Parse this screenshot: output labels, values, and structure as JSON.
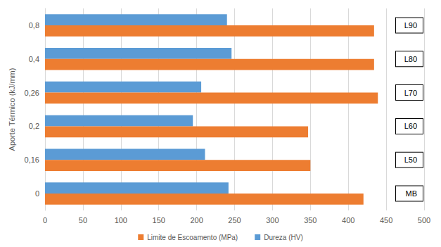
{
  "chart_data": {
    "type": "bar",
    "orientation": "horizontal",
    "y_label": "Aporte Térmico (kJ/mm)",
    "categories": [
      "0",
      "0,16",
      "0,2",
      "0,26",
      "0,4",
      "0,8"
    ],
    "annotations": [
      "MB",
      "L50",
      "L60",
      "L70",
      "L80",
      "L90"
    ],
    "series": [
      {
        "name": "Limite de Escoamento (MPa)",
        "color": "#ed7d31",
        "values": [
          420,
          350,
          347,
          439,
          434,
          434
        ]
      },
      {
        "name": "Dureza (HV)",
        "color": "#5b9bd5",
        "values": [
          242,
          211,
          195,
          206,
          246,
          240
        ]
      }
    ],
    "xlim": [
      0,
      500
    ],
    "xticks": [
      0,
      50,
      100,
      150,
      200,
      250,
      300,
      350,
      400,
      450,
      500
    ],
    "grid": true,
    "legend": "bottom"
  }
}
